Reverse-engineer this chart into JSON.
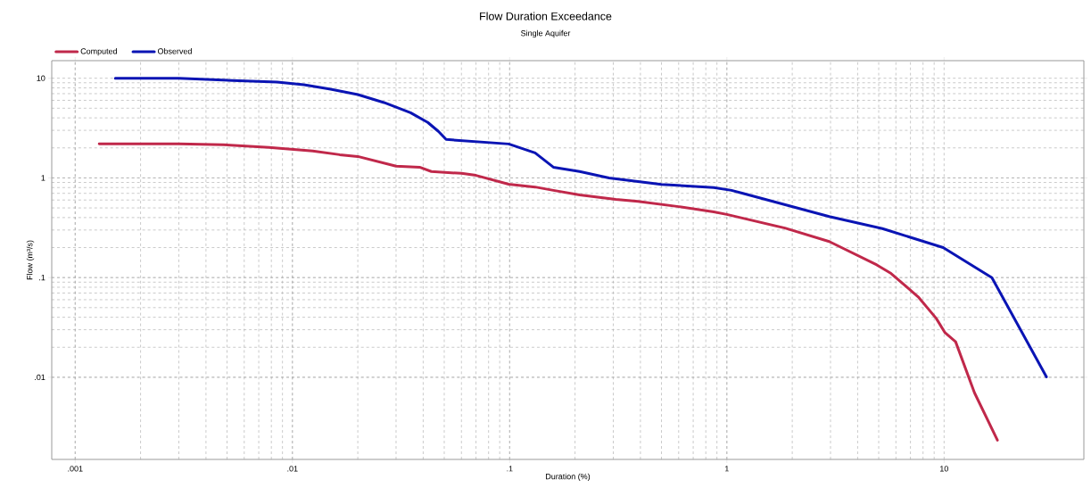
{
  "chart_data": {
    "type": "line",
    "title": "Flow Duration Exceedance",
    "subtitle": "Single Aquifer",
    "xlabel": "Duration (%)",
    "ylabel": "Flow (m³/s)",
    "log": "xy",
    "grid": true,
    "legend": "top left",
    "line_style": "solid",
    "marker": "none",
    "xlim": [
      0.00078,
      44
    ],
    "ylim": [
      0.0015,
      15
    ],
    "xticks": [
      {
        "value": 0.001,
        "label": ".001"
      },
      {
        "value": 0.01,
        "label": ".01"
      },
      {
        "value": 0.1,
        "label": ".1"
      },
      1,
      10
    ],
    "yticks": [
      {
        "value": 0.01,
        "label": ".01"
      },
      {
        "value": 0.1,
        "label": ".1"
      },
      1,
      10
    ],
    "series": [
      {
        "name": "Computed",
        "color": "#c0284a",
        "x": [
          0.00129,
          0.003,
          0.0048,
          0.0078,
          0.0124,
          0.0165,
          0.02,
          0.03,
          0.0385,
          0.0436,
          0.06,
          0.07,
          0.099,
          0.131,
          0.159,
          0.21,
          0.308,
          0.39,
          0.6,
          0.87,
          1.0,
          1.85,
          2.96,
          4.9,
          5.7,
          7.6,
          9.2,
          10.1,
          11.3,
          13.8,
          17.6
        ],
        "values": [
          2.2,
          2.19,
          2.15,
          2.02,
          1.86,
          1.71,
          1.64,
          1.31,
          1.28,
          1.16,
          1.11,
          1.06,
          0.865,
          0.81,
          0.75,
          0.675,
          0.61,
          0.58,
          0.515,
          0.456,
          0.43,
          0.314,
          0.23,
          0.134,
          0.11,
          0.064,
          0.039,
          0.028,
          0.0227,
          0.007,
          0.00234
        ]
      },
      {
        "name": "Observed",
        "color": "#0a14b4",
        "x": [
          0.00153,
          0.003,
          0.0053,
          0.0085,
          0.0113,
          0.015,
          0.02,
          0.0264,
          0.035,
          0.042,
          0.047,
          0.051,
          0.099,
          0.131,
          0.159,
          0.21,
          0.287,
          0.5,
          0.87,
          1.05,
          1.185,
          2.96,
          5.2,
          9.9,
          16.6,
          29.6
        ],
        "values": [
          10,
          10,
          9.5,
          9.15,
          8.6,
          7.75,
          6.85,
          5.7,
          4.5,
          3.6,
          2.93,
          2.43,
          2.19,
          1.78,
          1.28,
          1.16,
          1.0,
          0.86,
          0.8,
          0.75,
          0.7,
          0.41,
          0.31,
          0.2,
          0.1,
          0.0101
        ]
      }
    ]
  }
}
